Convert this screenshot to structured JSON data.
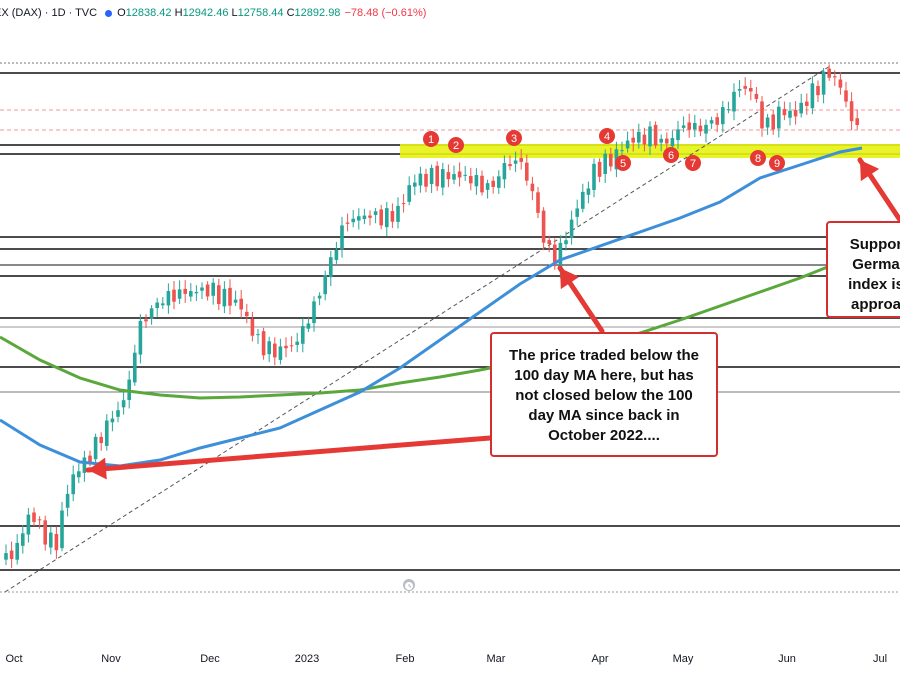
{
  "legend": {
    "symbol": "EX (DAX) · 1D · TVC",
    "dot_color": "#2962ff",
    "open_label": "O",
    "open": "12838.42",
    "high_label": "H",
    "high": "12942.46",
    "low_label": "L",
    "low": "12758.44",
    "close_label": "C",
    "close": "12892.98",
    "change": "−78.48 (−0.61%)"
  },
  "chart_data": {
    "type": "candlestick",
    "x_axis_labels": [
      "Oct",
      "Nov",
      "Dec",
      "2023",
      "Feb",
      "Mar",
      "Apr",
      "May",
      "Jun",
      "Jul"
    ],
    "series": [
      {
        "name": "100 day MA",
        "color": "#3d8fd9"
      },
      {
        "name": "200 day MA",
        "color": "#5aa83c"
      }
    ],
    "support_zone_color": "#e6f312",
    "touch_markers": [
      "1",
      "2",
      "3",
      "4",
      "5",
      "6",
      "7",
      "8",
      "9"
    ],
    "up_color": "#26a69a",
    "down_color": "#ef5350",
    "annotations": [
      {
        "lines": [
          "The price traded below the",
          "100 day MA here, but has",
          "not closed below the 100",
          "day MA since back in",
          "October 2022...."
        ]
      },
      {
        "lines": [
          "Suppor",
          "Germa",
          "index is",
          "approa"
        ]
      }
    ]
  }
}
